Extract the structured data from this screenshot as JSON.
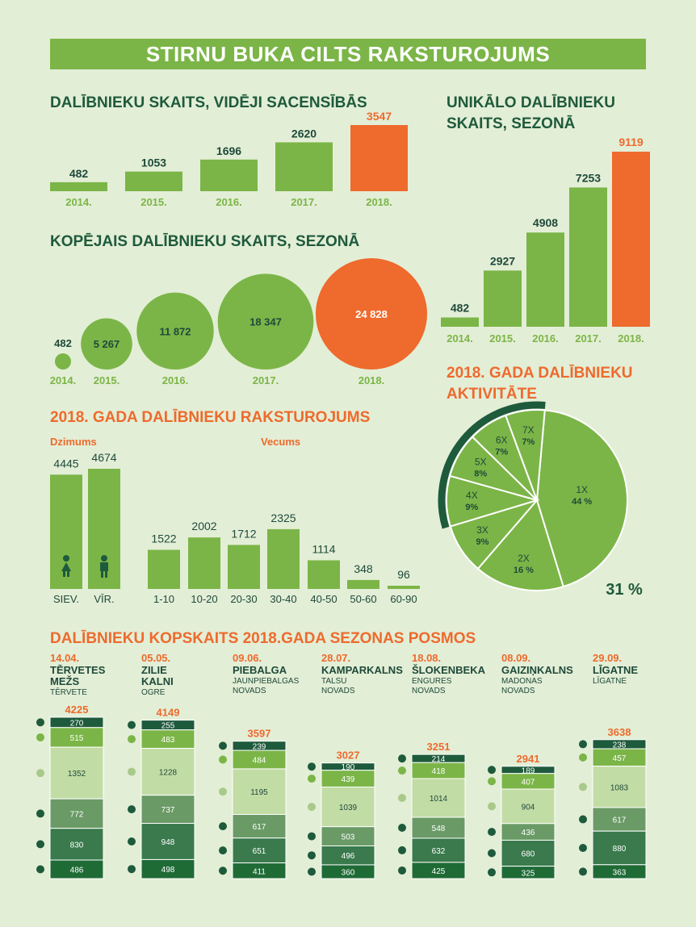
{
  "title": "STIRNU BUKA CILTS RAKSTUROJUMS",
  "colors": {
    "green": "#7bb547",
    "orange": "#ee6a2d",
    "dark_green": "#1e5a3c",
    "label_green": "#7bb547",
    "background": "#e3eed6"
  },
  "chart_data": [
    {
      "id": "avg_participants",
      "type": "bar",
      "title": "DALĪBNIEKU SKAITS, VIDĒJI SACENSĪBĀS",
      "categories": [
        "2014.",
        "2015.",
        "2016.",
        "2017.",
        "2018."
      ],
      "values": [
        482,
        1053,
        1696,
        2620,
        3547
      ],
      "value_labels": [
        "482",
        "1053",
        "1696",
        "2620",
        "3547"
      ],
      "highlight_index": 4
    },
    {
      "id": "unique_participants",
      "type": "bar",
      "title": "UNIKĀLO DALĪBNIEKU SKAITS, SEZONĀ",
      "title_lines": [
        "UNIKĀLO DALĪBNIEKU",
        "SKAITS, SEZONĀ"
      ],
      "categories": [
        "2014.",
        "2015.",
        "2016.",
        "2017.",
        "2018."
      ],
      "values": [
        482,
        2927,
        4908,
        7253,
        9119
      ],
      "value_labels": [
        "482",
        "2927",
        "4908",
        "7253",
        "9119"
      ],
      "highlight_index": 4
    },
    {
      "id": "total_participants",
      "type": "bubble",
      "title": "KOPĒJAIS DALĪBNIEKU SKAITS, SEZONĀ",
      "categories": [
        "2014.",
        "2015.",
        "2016.",
        "2017.",
        "2018."
      ],
      "values": [
        482,
        5267,
        11872,
        18347,
        24828
      ],
      "value_labels": [
        "482",
        "5 267",
        "11 872",
        "18 347",
        "24 828"
      ],
      "highlight_index": 4
    },
    {
      "id": "gender",
      "type": "bar",
      "section_title": "2018. GADA DALĪBNIEKU RAKSTUROJUMS",
      "title": "Dzimums",
      "categories": [
        "SIEV.",
        "VĪR."
      ],
      "values": [
        4445,
        4674
      ],
      "value_labels": [
        "4445",
        "4674"
      ]
    },
    {
      "id": "age",
      "type": "bar",
      "title": "Vecums",
      "categories": [
        "1-10",
        "10-20",
        "20-30",
        "30-40",
        "40-50",
        "50-60",
        "60-90"
      ],
      "values": [
        1522,
        2002,
        1712,
        2325,
        1114,
        348,
        96
      ],
      "value_labels": [
        "1522",
        "2002",
        "1712",
        "2325",
        "1114",
        "348",
        "96"
      ]
    },
    {
      "id": "activity",
      "type": "pie",
      "title": "2018. GADA DALĪBNIEKU AKTIVITĀTE",
      "title_lines": [
        "2018. GADA DALĪBNIEKU",
        "AKTIVITĀTE"
      ],
      "slices": [
        {
          "label": "1X",
          "pct_label": "44 %",
          "value": 44
        },
        {
          "label": "2X",
          "pct_label": "16 %",
          "value": 16
        },
        {
          "label": "3X",
          "pct_label": "9%",
          "value": 9
        },
        {
          "label": "4X",
          "pct_label": "9%",
          "value": 9
        },
        {
          "label": "5X",
          "pct_label": "8%",
          "value": 8
        },
        {
          "label": "6X",
          "pct_label": "7%",
          "value": 7
        },
        {
          "label": "7X",
          "pct_label": "7%",
          "value": 7
        }
      ],
      "highlight_label": "31 %",
      "highlight_value": 31
    },
    {
      "id": "stages",
      "type": "stacked_bar",
      "title": "DALĪBNIEKU KOPSKAITS 2018.GADA SEZONAS POSMOS",
      "series": [
        {
          "icon": "boar-icon"
        },
        {
          "icon": "deer-icon"
        },
        {
          "icon": "hare-icon"
        },
        {
          "icon": "squirrel-icon"
        },
        {
          "icon": "runner-icon"
        },
        {
          "icon": "bear-icon"
        }
      ],
      "stages": [
        {
          "date": "14.04.",
          "name_lines": [
            "TĒRVETES",
            "MEŽS"
          ],
          "place_lines": [
            "TĒRVETE"
          ],
          "total": 4225,
          "total_label": "4225",
          "values": [
            270,
            515,
            1352,
            772,
            830,
            486
          ]
        },
        {
          "date": "05.05.",
          "name_lines": [
            "ZILIE",
            "KALNI"
          ],
          "place_lines": [
            "OGRE"
          ],
          "total": 4149,
          "total_label": "4149",
          "values": [
            255,
            483,
            1228,
            737,
            948,
            498
          ]
        },
        {
          "date": "09.06.",
          "name_lines": [
            "PIEBALGA"
          ],
          "place_lines": [
            "JAUNPIEBALGAS",
            "NOVADS"
          ],
          "total": 3597,
          "total_label": "3597",
          "values": [
            239,
            484,
            1195,
            617,
            651,
            411
          ]
        },
        {
          "date": "28.07.",
          "name_lines": [
            "KAMPARKALNS"
          ],
          "place_lines": [
            "TALSU",
            "NOVADS"
          ],
          "total": 3027,
          "total_label": "3027",
          "values": [
            190,
            439,
            1039,
            503,
            496,
            360
          ]
        },
        {
          "date": "18.08.",
          "name_lines": [
            "ŠLOKENBEKA"
          ],
          "place_lines": [
            "ENGURES",
            "NOVADS"
          ],
          "total": 3251,
          "total_label": "3251",
          "values": [
            214,
            418,
            1014,
            548,
            632,
            425
          ]
        },
        {
          "date": "08.09.",
          "name_lines": [
            "GAIZIŅKALNS"
          ],
          "place_lines": [
            "MADONAS",
            "NOVADS"
          ],
          "total": 2941,
          "total_label": "2941",
          "values": [
            189,
            407,
            904,
            436,
            680,
            325
          ]
        },
        {
          "date": "29.09.",
          "name_lines": [
            "LĪGATNE"
          ],
          "place_lines": [
            "LĪGATNE"
          ],
          "total": 3638,
          "total_label": "3638",
          "values": [
            238,
            457,
            1083,
            617,
            880,
            363
          ]
        }
      ]
    }
  ]
}
